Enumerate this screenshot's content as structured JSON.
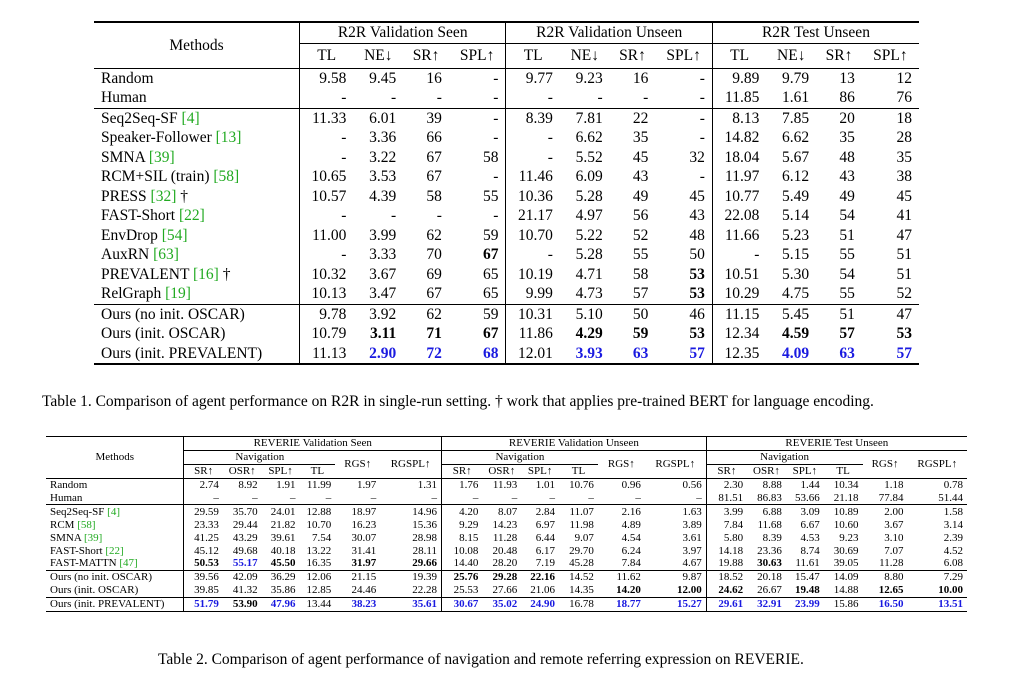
{
  "table1": {
    "methods_header": "Methods",
    "groups": [
      "R2R Validation Seen",
      "R2R Validation Unseen",
      "R2R Test Unseen"
    ],
    "cols": [
      "TL",
      "NE↓",
      "SR↑",
      "SPL↑"
    ],
    "rows": [
      {
        "method": "Random",
        "cite": "",
        "suffix": "",
        "vals": [
          "9.58",
          "9.45",
          "16",
          "-",
          "9.77",
          "9.23",
          "16",
          "-",
          "9.89",
          "9.79",
          "13",
          "12"
        ]
      },
      {
        "method": "Human",
        "cite": "",
        "suffix": "",
        "vals": [
          "-",
          "-",
          "-",
          "-",
          "-",
          "-",
          "-",
          "-",
          "11.85",
          "1.61",
          "86",
          "76"
        ]
      },
      {
        "method": "Seq2Seq-SF ",
        "cite": "[4]",
        "suffix": "",
        "vals": [
          "11.33",
          "6.01",
          "39",
          "-",
          "8.39",
          "7.81",
          "22",
          "-",
          "8.13",
          "7.85",
          "20",
          "18"
        ]
      },
      {
        "method": "Speaker-Follower ",
        "cite": "[13]",
        "suffix": "",
        "vals": [
          "-",
          "3.36",
          "66",
          "-",
          "-",
          "6.62",
          "35",
          "-",
          "14.82",
          "6.62",
          "35",
          "28"
        ]
      },
      {
        "method": "SMNA ",
        "cite": "[39]",
        "suffix": "",
        "vals": [
          "-",
          "3.22",
          "67",
          "58",
          "-",
          "5.52",
          "45",
          "32",
          "18.04",
          "5.67",
          "48",
          "35"
        ]
      },
      {
        "method": "RCM+SIL (train) ",
        "cite": "[58]",
        "suffix": "",
        "vals": [
          "10.65",
          "3.53",
          "67",
          "-",
          "11.46",
          "6.09",
          "43",
          "-",
          "11.97",
          "6.12",
          "43",
          "38"
        ]
      },
      {
        "method": "PRESS ",
        "cite": "[32]",
        "suffix": " †",
        "vals": [
          "10.57",
          "4.39",
          "58",
          "55",
          "10.36",
          "5.28",
          "49",
          "45",
          "10.77",
          "5.49",
          "49",
          "45"
        ]
      },
      {
        "method": "FAST-Short ",
        "cite": "[22]",
        "suffix": "",
        "vals": [
          "-",
          "-",
          "-",
          "-",
          "21.17",
          "4.97",
          "56",
          "43",
          "22.08",
          "5.14",
          "54",
          "41"
        ]
      },
      {
        "method": "EnvDrop ",
        "cite": "[54]",
        "suffix": "",
        "vals": [
          "11.00",
          "3.99",
          "62",
          "59",
          "10.70",
          "5.22",
          "52",
          "48",
          "11.66",
          "5.23",
          "51",
          "47"
        ]
      },
      {
        "method": "AuxRN ",
        "cite": "[63]",
        "suffix": "",
        "vals": [
          "-",
          "3.33",
          "70",
          "67",
          "-",
          "5.28",
          "55",
          "50",
          "-",
          "5.15",
          "55",
          "51"
        ]
      },
      {
        "method": "PREVALENT ",
        "cite": "[16]",
        "suffix": " †",
        "vals": [
          "10.32",
          "3.67",
          "69",
          "65",
          "10.19",
          "4.71",
          "58",
          "53",
          "10.51",
          "5.30",
          "54",
          "51"
        ]
      },
      {
        "method": "RelGraph ",
        "cite": "[19]",
        "suffix": "",
        "vals": [
          "10.13",
          "3.47",
          "67",
          "65",
          "9.99",
          "4.73",
          "57",
          "53",
          "10.29",
          "4.75",
          "55",
          "52"
        ]
      },
      {
        "method": "Ours (no init. OSCAR)",
        "cite": "",
        "suffix": "",
        "vals": [
          "9.78",
          "3.92",
          "62",
          "59",
          "10.31",
          "5.10",
          "50",
          "46",
          "11.15",
          "5.45",
          "51",
          "47"
        ]
      },
      {
        "method": "Ours (init. OSCAR)",
        "cite": "",
        "suffix": "",
        "vals": [
          "10.79",
          "3.11",
          "71",
          "67",
          "11.86",
          "4.29",
          "59",
          "53",
          "12.34",
          "4.59",
          "57",
          "53"
        ]
      },
      {
        "method": "Ours (init. PREVALENT)",
        "cite": "",
        "suffix": "",
        "vals": [
          "11.13",
          "2.90",
          "72",
          "68",
          "12.01",
          "3.93",
          "63",
          "57",
          "12.35",
          "4.09",
          "63",
          "57"
        ]
      }
    ],
    "caption": "Table 1. Comparison of agent performance on R2R in single-run setting. † work that applies pre-trained BERT for language encoding."
  },
  "table2": {
    "methods_header": "Methods",
    "groups": [
      "REVERIE Validation Seen",
      "REVERIE Validation Unseen",
      "REVERIE Test Unseen"
    ],
    "nav_label": "Navigation",
    "nav_cols": [
      "SR↑",
      "OSR↑",
      "SPL↑",
      "TL"
    ],
    "rgs": "RGS↑",
    "rgspl": "RGSPL↑",
    "rows": [
      {
        "method": "Random",
        "cite": "",
        "vals": [
          "2.74",
          "8.92",
          "1.91",
          "11.99",
          "1.97",
          "1.31",
          "1.76",
          "11.93",
          "1.01",
          "10.76",
          "0.96",
          "0.56",
          "2.30",
          "8.88",
          "1.44",
          "10.34",
          "1.18",
          "0.78"
        ]
      },
      {
        "method": "Human",
        "cite": "",
        "vals": [
          "–",
          "–",
          "–",
          "–",
          "–",
          "–",
          "–",
          "–",
          "–",
          "–",
          "–",
          "–",
          "81.51",
          "86.83",
          "53.66",
          "21.18",
          "77.84",
          "51.44"
        ]
      },
      {
        "method": "Seq2Seq-SF ",
        "cite": "[4]",
        "vals": [
          "29.59",
          "35.70",
          "24.01",
          "12.88",
          "18.97",
          "14.96",
          "4.20",
          "8.07",
          "2.84",
          "11.07",
          "2.16",
          "1.63",
          "3.99",
          "6.88",
          "3.09",
          "10.89",
          "2.00",
          "1.58"
        ]
      },
      {
        "method": "RCM ",
        "cite": "[58]",
        "vals": [
          "23.33",
          "29.44",
          "21.82",
          "10.70",
          "16.23",
          "15.36",
          "9.29",
          "14.23",
          "6.97",
          "11.98",
          "4.89",
          "3.89",
          "7.84",
          "11.68",
          "6.67",
          "10.60",
          "3.67",
          "3.14"
        ]
      },
      {
        "method": "SMNA ",
        "cite": "[39]",
        "vals": [
          "41.25",
          "43.29",
          "39.61",
          "7.54",
          "30.07",
          "28.98",
          "8.15",
          "11.28",
          "6.44",
          "9.07",
          "4.54",
          "3.61",
          "5.80",
          "8.39",
          "4.53",
          "9.23",
          "3.10",
          "2.39"
        ]
      },
      {
        "method": "FAST-Short ",
        "cite": "[22]",
        "vals": [
          "45.12",
          "49.68",
          "40.18",
          "13.22",
          "31.41",
          "28.11",
          "10.08",
          "20.48",
          "6.17",
          "29.70",
          "6.24",
          "3.97",
          "14.18",
          "23.36",
          "8.74",
          "30.69",
          "7.07",
          "4.52"
        ]
      },
      {
        "method": "FAST-MATTN ",
        "cite": "[47]",
        "vals": [
          "50.53",
          "55.17",
          "45.50",
          "16.35",
          "31.97",
          "29.66",
          "14.40",
          "28.20",
          "7.19",
          "45.28",
          "7.84",
          "4.67",
          "19.88",
          "30.63",
          "11.61",
          "39.05",
          "11.28",
          "6.08"
        ]
      },
      {
        "method": "Ours (no init. OSCAR)",
        "cite": "",
        "vals": [
          "39.56",
          "42.09",
          "36.29",
          "12.06",
          "21.15",
          "19.39",
          "25.76",
          "29.28",
          "22.16",
          "14.52",
          "11.62",
          "9.87",
          "18.52",
          "20.18",
          "15.47",
          "14.09",
          "8.80",
          "7.29"
        ]
      },
      {
        "method": "Ours (init. OSCAR)",
        "cite": "",
        "vals": [
          "39.85",
          "41.32",
          "35.86",
          "12.85",
          "24.46",
          "22.28",
          "25.53",
          "27.66",
          "21.06",
          "14.35",
          "14.20",
          "12.00",
          "24.62",
          "26.67",
          "19.48",
          "14.88",
          "12.65",
          "10.00"
        ]
      },
      {
        "method": "Ours (init. PREVALENT)",
        "cite": "",
        "vals": [
          "51.79",
          "53.90",
          "47.96",
          "13.44",
          "38.23",
          "35.61",
          "30.67",
          "35.02",
          "24.90",
          "16.78",
          "18.77",
          "15.27",
          "29.61",
          "32.91",
          "23.99",
          "15.86",
          "16.50",
          "13.51"
        ]
      }
    ],
    "caption": "Table 2. Comparison of agent performance of navigation and remote referring expression on REVERIE."
  }
}
